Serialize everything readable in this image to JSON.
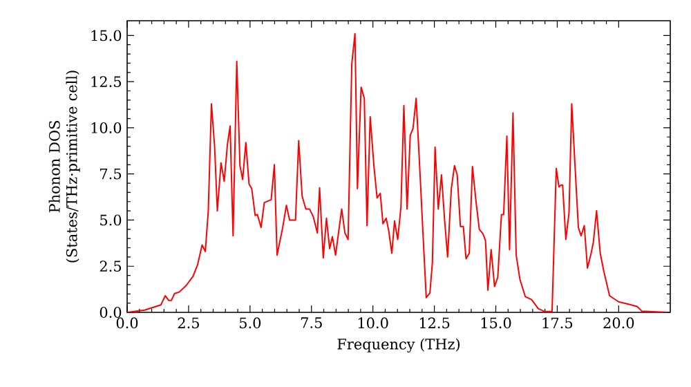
{
  "chart_data": {
    "type": "line",
    "xlabel": "Frequency (THz)",
    "ylabel": "Phonon DOS (States/THz·primitive cell)",
    "xlim": [
      0,
      22.1
    ],
    "ylim": [
      0,
      15.8
    ],
    "xticks": [
      {
        "value": 0,
        "label": "0.0"
      },
      {
        "value": 2.5,
        "label": "2.5"
      },
      {
        "value": 5,
        "label": "5.0"
      },
      {
        "value": 7.5,
        "label": "7.5"
      },
      {
        "value": 10,
        "label": "10.0"
      },
      {
        "value": 12.5,
        "label": "12.5"
      },
      {
        "value": 15,
        "label": "15.0"
      },
      {
        "value": 17.5,
        "label": "17.5"
      },
      {
        "value": 20,
        "label": "20.0"
      }
    ],
    "yticks": [
      {
        "value": 0,
        "label": "0.0"
      },
      {
        "value": 2.5,
        "label": "2.5"
      },
      {
        "value": 5,
        "label": "5.0"
      },
      {
        "value": 7.5,
        "label": "7.5"
      },
      {
        "value": 10,
        "label": "10.0"
      },
      {
        "value": 12.5,
        "label": "12.5"
      },
      {
        "value": 15,
        "label": "15.0"
      }
    ],
    "marker": "none",
    "line_style": "solid",
    "series": [
      {
        "color": "#ff0000",
        "x": [
          0,
          0.71,
          1.37,
          1.55,
          1.69,
          1.8,
          1.93,
          2.12,
          2.4,
          2.68,
          2.87,
          3.05,
          3.18,
          3.3,
          3.43,
          3.56,
          3.67,
          3.82,
          3.95,
          4.08,
          4.19,
          4.31,
          4.46,
          4.59,
          4.7,
          4.83,
          4.96,
          5.07,
          5.21,
          5.3,
          5.45,
          5.58,
          5.77,
          5.86,
          5.99,
          6.1,
          6.33,
          6.48,
          6.61,
          6.85,
          6.98,
          7.12,
          7.27,
          7.42,
          7.57,
          7.74,
          7.83,
          7.98,
          8.11,
          8.24,
          8.35,
          8.48,
          8.73,
          8.86,
          8.99,
          9.14,
          9.27,
          9.37,
          9.52,
          9.65,
          9.76,
          9.89,
          10.04,
          10.17,
          10.3,
          10.41,
          10.54,
          10.64,
          10.77,
          10.88,
          11.01,
          11.14,
          11.26,
          11.39,
          11.52,
          11.63,
          11.76,
          11.91,
          12.04,
          12.17,
          12.32,
          12.42,
          12.53,
          12.66,
          12.79,
          12.92,
          13.04,
          13.19,
          13.32,
          13.43,
          13.56,
          13.68,
          13.79,
          13.92,
          14.05,
          14.2,
          14.33,
          14.48,
          14.58,
          14.68,
          14.81,
          14.95,
          15.08,
          15.23,
          15.32,
          15.45,
          15.56,
          15.7,
          15.83,
          15.98,
          16.2,
          16.45,
          16.73,
          16.97,
          17.29,
          17.46,
          17.57,
          17.66,
          17.72,
          17.85,
          17.98,
          18.09,
          18.23,
          18.36,
          18.47,
          18.6,
          18.73,
          18.88,
          18.97,
          19.1,
          19.25,
          19.4,
          19.63,
          20.0,
          20.38,
          20.75,
          20.94,
          22.0
        ],
        "values": [
          0,
          0.12,
          0.4,
          0.9,
          0.65,
          0.65,
          1.02,
          1.1,
          1.45,
          1.95,
          2.6,
          3.65,
          3.3,
          5.45,
          11.3,
          8.95,
          5.5,
          8.1,
          7.1,
          9.1,
          10.1,
          4.15,
          13.6,
          7.95,
          7.2,
          9.2,
          6.95,
          6.7,
          5.25,
          5.3,
          4.6,
          5.95,
          6.05,
          6.1,
          8.0,
          3.1,
          4.6,
          5.8,
          5.0,
          5.0,
          9.3,
          6.3,
          5.6,
          5.6,
          5.2,
          4.3,
          6.75,
          2.95,
          5.1,
          3.45,
          4.1,
          3.1,
          5.6,
          4.3,
          3.95,
          13.45,
          15.1,
          6.7,
          12.2,
          11.6,
          4.7,
          10.6,
          7.95,
          6.2,
          6.45,
          4.8,
          5.1,
          4.45,
          3.2,
          4.95,
          3.95,
          5.7,
          11.2,
          5.6,
          9.6,
          9.95,
          11.6,
          7.7,
          4.2,
          0.8,
          1.05,
          2.7,
          8.95,
          5.6,
          7.45,
          4.95,
          3.0,
          6.7,
          7.95,
          7.45,
          4.65,
          4.65,
          2.9,
          3.2,
          7.9,
          5.95,
          4.5,
          4.25,
          3.9,
          1.2,
          3.4,
          1.4,
          1.9,
          5.3,
          5.3,
          9.55,
          3.4,
          10.8,
          3.1,
          1.8,
          0.85,
          0.7,
          0.2,
          0.05,
          0.05,
          7.8,
          6.8,
          6.9,
          6.9,
          3.95,
          5.4,
          11.3,
          7.8,
          4.6,
          4.15,
          4.7,
          2.4,
          3.2,
          3.8,
          5.5,
          3.2,
          2.2,
          0.9,
          0.57,
          0.45,
          0.32,
          0.07,
          0
        ]
      }
    ]
  }
}
